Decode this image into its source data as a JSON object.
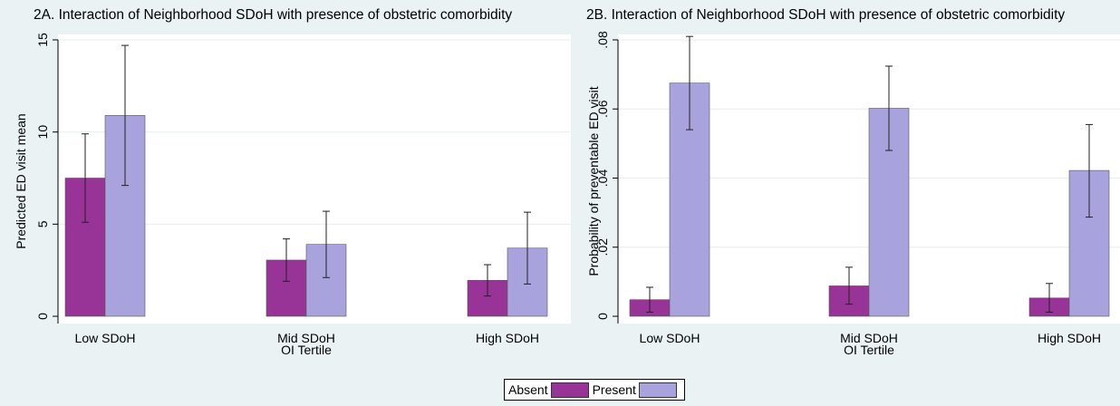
{
  "colors": {
    "absent": "#983397",
    "present": "#a8a3dc",
    "plot_bg": "#ffffff",
    "page_bg": "#eaf2f3",
    "grid": "#e6eeee"
  },
  "legend": {
    "absent": "Absent",
    "present": "Present"
  },
  "chart_data": [
    {
      "type": "bar",
      "title": "2A. Interaction of Neighborhood SDoH with presence of obstetric comorbidity",
      "ylabel": "Predicted ED visit mean",
      "xlabel": "OI Tertile",
      "ylim": [
        0,
        15
      ],
      "yticks": [
        0,
        5,
        10,
        15
      ],
      "ytick_labels": [
        "0",
        "5",
        "10",
        "15"
      ],
      "categories": [
        "Low SDoH",
        "Mid SDoH",
        "High SDoH"
      ],
      "grid": true,
      "series": [
        {
          "name": "Absent",
          "values": [
            7.5,
            3.05,
            1.95
          ],
          "ci_low": [
            5.1,
            1.9,
            1.1
          ],
          "ci_high": [
            9.9,
            4.2,
            2.8
          ]
        },
        {
          "name": "Present",
          "values": [
            10.9,
            3.9,
            3.7
          ],
          "ci_low": [
            7.1,
            2.1,
            1.75
          ],
          "ci_high": [
            14.7,
            5.7,
            5.65
          ]
        }
      ]
    },
    {
      "type": "bar",
      "title": "2B. Interaction of Neighborhood SDoH with presence of obstetric comorbidity",
      "ylabel": "Probability of preventable ED visit",
      "xlabel": "OI Tertile",
      "ylim": [
        0,
        0.08
      ],
      "yticks": [
        0,
        0.02,
        0.04,
        0.06,
        0.08
      ],
      "ytick_labels": [
        "0",
        ".02",
        ".04",
        ".06",
        ".08"
      ],
      "categories": [
        "Low SDoH",
        "Mid SDoH",
        "High SDoH"
      ],
      "grid": true,
      "series": [
        {
          "name": "Absent",
          "values": [
            0.0048,
            0.0088,
            0.0053
          ],
          "ci_low": [
            0.0012,
            0.0035,
            0.0012
          ],
          "ci_high": [
            0.0084,
            0.0142,
            0.0095
          ]
        },
        {
          "name": "Present",
          "values": [
            0.0675,
            0.0602,
            0.0422
          ],
          "ci_low": [
            0.054,
            0.048,
            0.0287
          ],
          "ci_high": [
            0.081,
            0.0724,
            0.0555
          ]
        }
      ]
    }
  ]
}
